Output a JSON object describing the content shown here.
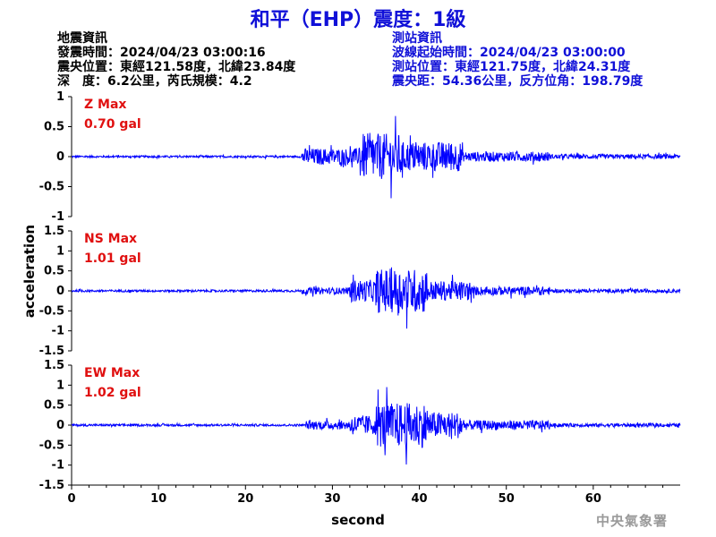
{
  "title": "和平（EHP）震度：1級",
  "quake_info": {
    "heading": "地震資訊",
    "origin_time": "發震時間：2024/04/23 03:00:16",
    "epicenter": "震央位置：東經121.58度，北緯23.84度",
    "depth_magnitude": "深　度：6.2公里，芮氏規模：4.2"
  },
  "station_info": {
    "heading": "測站資訊",
    "wave_start": "波線起始時間：2024/04/23 03:00:00",
    "station_location": "測站位置：東經121.75度，北緯24.31度",
    "distance_azimuth": "震央距：54.36公里，反方位角：198.79度"
  },
  "credit": "中央氣象署",
  "colors": {
    "title": "#1010d8",
    "station_text": "#1010d8",
    "trace": "#0000ff",
    "max_label": "#e01010",
    "credit": "#9a9a9a"
  },
  "chart_data": {
    "type": "line",
    "xlabel": "second",
    "ylabel": "acceleration",
    "xlim": [
      0,
      70
    ],
    "x_ticks": [
      "0",
      "10",
      "20",
      "30",
      "40",
      "50",
      "60"
    ],
    "grid": false,
    "panels": [
      {
        "name": "Z",
        "max_label": "Z Max",
        "max_value": "0.70 gal",
        "ylim": [
          -1,
          1
        ],
        "y_ticks": [
          "1",
          "0.5",
          "0",
          "-0.5",
          "-1"
        ],
        "waveform": {
          "noise_amplitude": 0.03,
          "segments": [
            {
              "start": 0,
              "end": 26.5,
              "amplitude": 0.03
            },
            {
              "start": 26.5,
              "end": 33,
              "amplitude": 0.25
            },
            {
              "start": 33,
              "end": 38,
              "amplitude": 0.7
            },
            {
              "start": 38,
              "end": 45,
              "amplitude": 0.45
            },
            {
              "start": 45,
              "end": 55,
              "amplitude": 0.15
            },
            {
              "start": 55,
              "end": 70,
              "amplitude": 0.07
            }
          ]
        }
      },
      {
        "name": "NS",
        "max_label": "NS Max",
        "max_value": "1.01 gal",
        "ylim": [
          -1.5,
          1.5
        ],
        "y_ticks": [
          "1.5",
          "1",
          "0.5",
          "0",
          "-0.5",
          "-1",
          "-1.5"
        ],
        "waveform": {
          "noise_amplitude": 0.04,
          "segments": [
            {
              "start": 0,
              "end": 26.5,
              "amplitude": 0.05
            },
            {
              "start": 26.5,
              "end": 32,
              "amplitude": 0.15
            },
            {
              "start": 32,
              "end": 35,
              "amplitude": 0.5
            },
            {
              "start": 35,
              "end": 41,
              "amplitude": 1.01
            },
            {
              "start": 41,
              "end": 46,
              "amplitude": 0.45
            },
            {
              "start": 46,
              "end": 55,
              "amplitude": 0.2
            },
            {
              "start": 55,
              "end": 70,
              "amplitude": 0.08
            }
          ]
        }
      },
      {
        "name": "EW",
        "max_label": "EW Max",
        "max_value": "1.02 gal",
        "ylim": [
          -1.5,
          1.5
        ],
        "y_ticks": [
          "1.5",
          "1",
          "0.5",
          "0",
          "-0.5",
          "-1",
          "-1.5"
        ],
        "waveform": {
          "noise_amplitude": 0.04,
          "segments": [
            {
              "start": 0,
              "end": 27,
              "amplitude": 0.05
            },
            {
              "start": 27,
              "end": 32,
              "amplitude": 0.2
            },
            {
              "start": 32,
              "end": 35,
              "amplitude": 0.45
            },
            {
              "start": 35,
              "end": 41,
              "amplitude": 1.02
            },
            {
              "start": 41,
              "end": 45,
              "amplitude": 0.6
            },
            {
              "start": 45,
              "end": 55,
              "amplitude": 0.22
            },
            {
              "start": 55,
              "end": 70,
              "amplitude": 0.08
            }
          ]
        }
      }
    ]
  }
}
